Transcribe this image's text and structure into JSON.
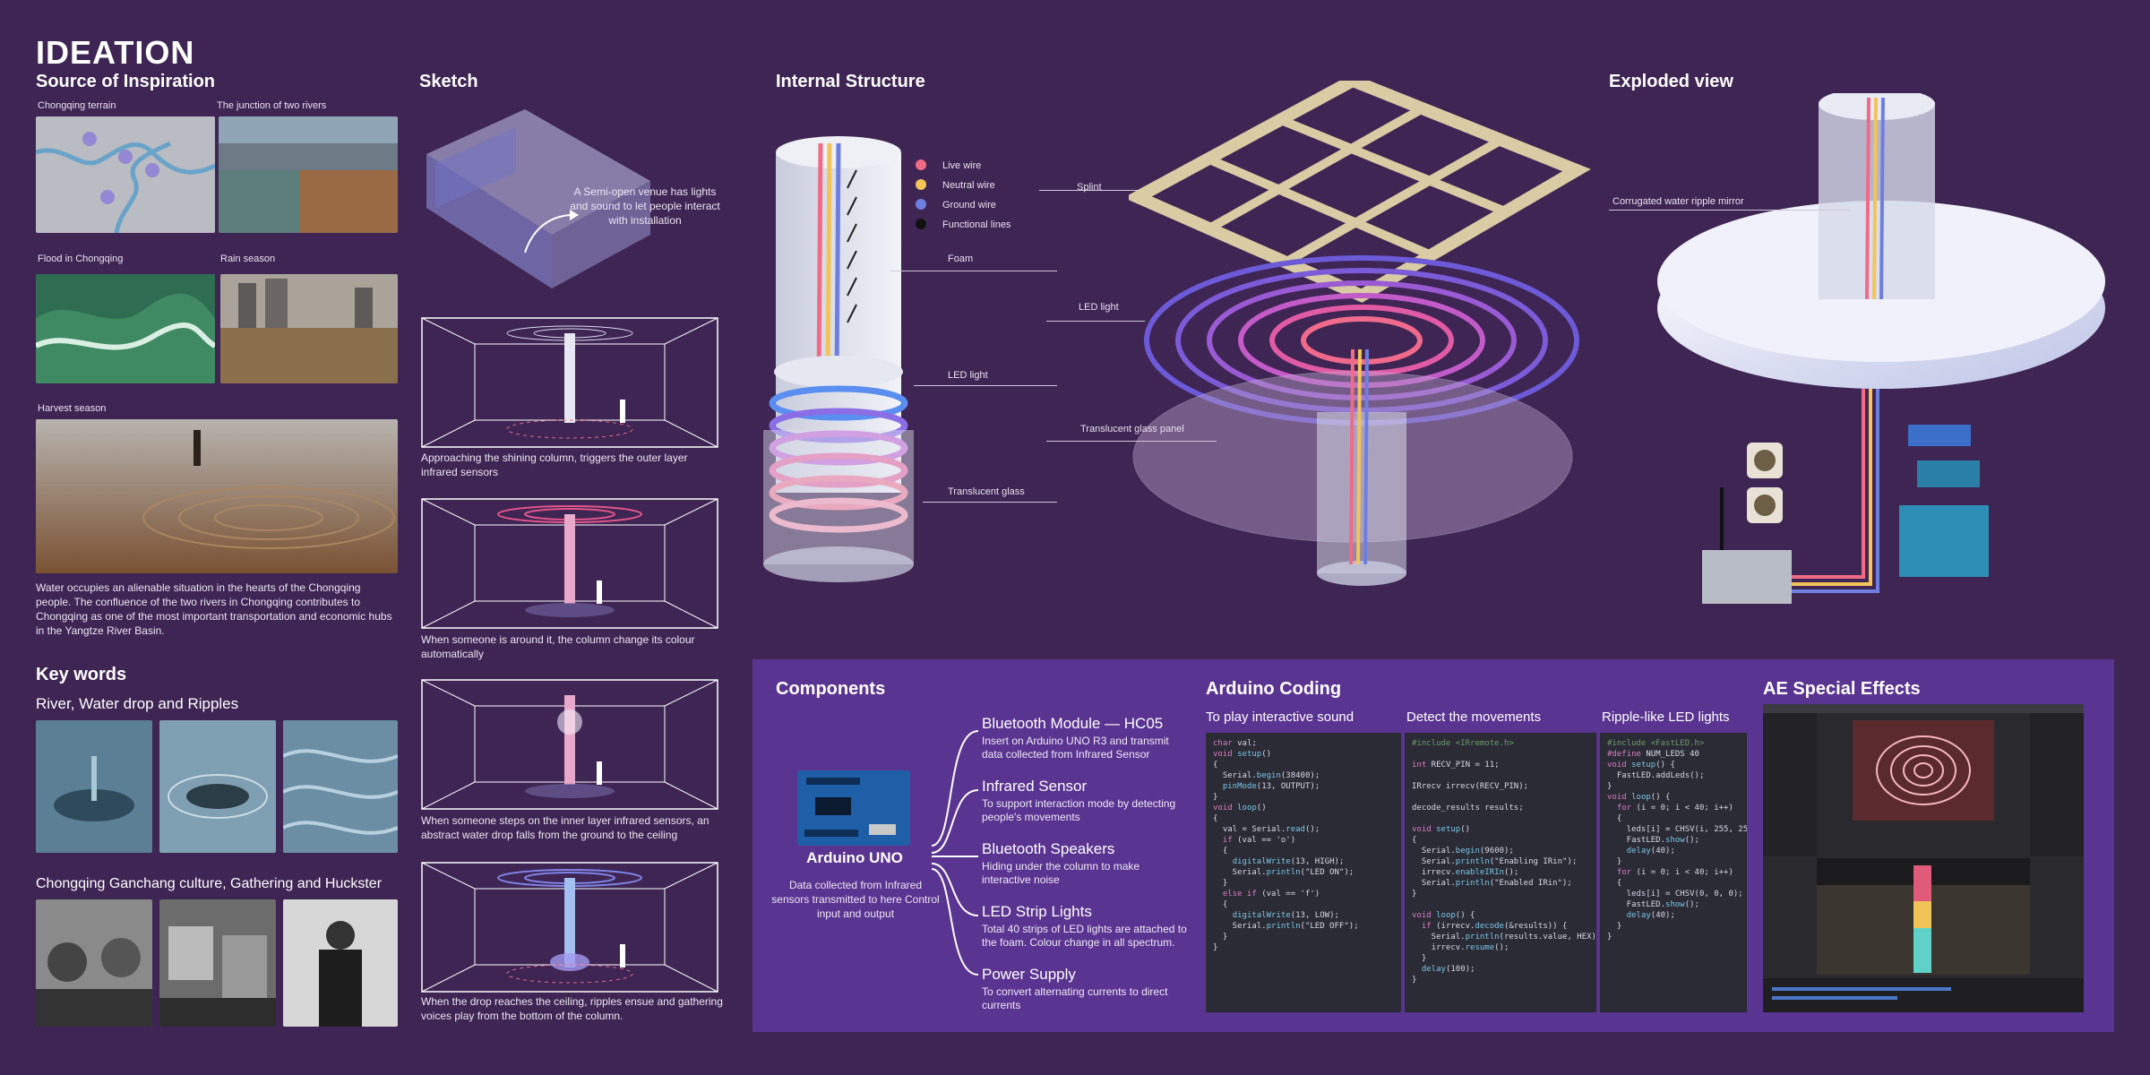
{
  "title": "IDEATION",
  "inspiration": {
    "heading": "Source of Inspiration",
    "captions": {
      "terrain": "Chongqing terrain",
      "junction": "The junction of two rivers",
      "flood": "Flood in Chongqing",
      "rain": "Rain season",
      "harvest": "Harvest season"
    },
    "paragraph": "Water occupies an alienable situation in the hearts of the Chongqing people. The confluence of the two rivers in Chongqing contributes to Chongqing as one of the most important transportation and economic hubs in the Yangtze River Basin."
  },
  "keywords": {
    "heading": "Key words",
    "line1": "River, Water drop and Ripples",
    "line2": "Chongqing Ganchang culture, Gathering and Huckster"
  },
  "sketch": {
    "heading": "Sketch",
    "venue_note": "A Semi-open venue has lights and sound to let people interact with installation",
    "steps": [
      "Approaching the shining column, triggers the outer layer infrared sensors",
      "When someone is around it, the column change its colour automatically",
      "When someone steps on the inner layer infrared sensors, an abstract water drop falls from the ground to the ceiling",
      "When the drop reaches the ceiling, ripples ensue and gathering voices play from the bottom of the column."
    ]
  },
  "internal": {
    "heading": "Internal Structure",
    "legend": [
      {
        "label": "Live wire",
        "color": "#f06b86"
      },
      {
        "label": "Neutral wire",
        "color": "#f2c45a"
      },
      {
        "label": "Ground wire",
        "color": "#6f7fe0"
      },
      {
        "label": "Functional lines",
        "color": "#111111"
      }
    ],
    "labels": {
      "foam": "Foam",
      "led": "LED light",
      "glass": "Translucent glass",
      "splint": "Splint",
      "led2": "LED light",
      "panel": "Translucent glass panel"
    }
  },
  "exploded": {
    "heading": "Exploded view",
    "mirror": "Corrugated water ripple mirror"
  },
  "components": {
    "heading": "Components",
    "board_name": "Arduino UNO",
    "board_desc": "Data collected from Infrared sensors transmitted to here Control input and output",
    "items": [
      {
        "title": "Bluetooth Module — HC05",
        "desc": "Insert on Arduino UNO R3 and transmit data collected from Infrared Sensor"
      },
      {
        "title": "Infrared Sensor",
        "desc": "To support interaction mode by detecting people's movements"
      },
      {
        "title": "Bluetooth Speakers",
        "desc": "Hiding under the column to make interactive noise"
      },
      {
        "title": "LED Strip Lights",
        "desc": "Total 40 strips of LED lights are attached to the foam. Colour change in all spectrum."
      },
      {
        "title": "Power Supply",
        "desc": "To convert alternating currents to direct currents"
      }
    ]
  },
  "coding": {
    "heading": "Arduino Coding",
    "col1": "To play interactive sound",
    "col2": "Detect the movements",
    "col3": "Ripple-like LED lights"
  },
  "ae": {
    "heading": "AE Special Effects"
  }
}
